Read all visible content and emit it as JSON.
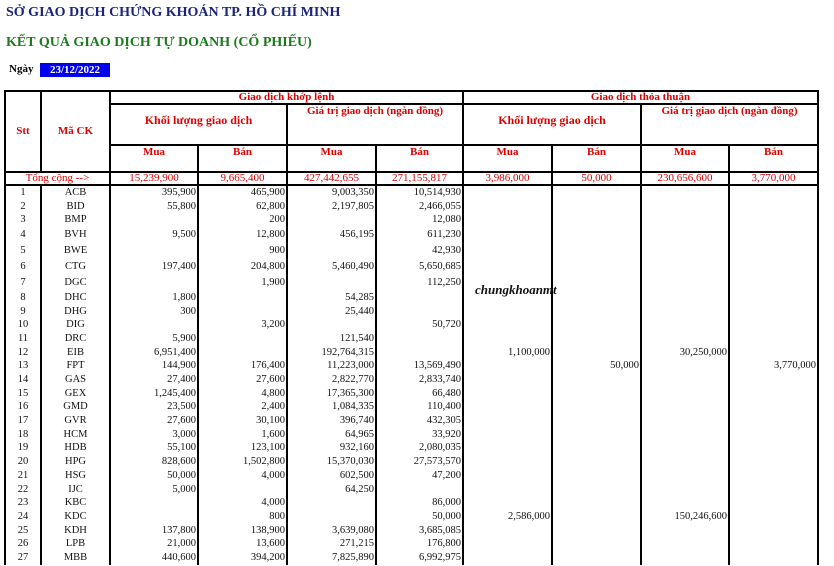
{
  "header": {
    "exchange": "SỞ GIAO DỊCH CHỨNG KHOÁN TP. HỒ CHÍ MINH",
    "report_title": "KẾT QUẢ GIAO DỊCH TỰ DOANH (CỔ PHIẾU)",
    "date_label": "Ngày",
    "date_value": "23/12/2022"
  },
  "watermark": "chungkhoanmt",
  "table": {
    "stt": "Stt",
    "ma_ck": "Mã CK",
    "group_match": "Giao dịch khớp lệnh",
    "group_deal": "Giao dịch thỏa thuận",
    "volume": "Khối lượng giao dịch",
    "value": "Giá trị giao dịch (ngàn đồng)",
    "buy": "Mua",
    "sell": "Bán",
    "total_label": "Tổng cộng  -->",
    "totals": [
      "15,239,900",
      "9,665,400",
      "427,442,655",
      "271,155,817",
      "3,986,000",
      "50,000",
      "230,656,600",
      "3,770,000"
    ],
    "rows": [
      [
        "1",
        "ACB",
        "395,900",
        "465,900",
        "9,003,350",
        "10,514,930",
        "",
        "",
        "",
        ""
      ],
      [
        "2",
        "BID",
        "55,800",
        "62,800",
        "2,197,805",
        "2,466,055",
        "",
        "",
        "",
        ""
      ],
      [
        "3",
        "BMP",
        "",
        "200",
        "",
        "12,080",
        "",
        "",
        "",
        ""
      ],
      [
        "4",
        "BVH",
        "9,500",
        "12,800",
        "456,195",
        "611,230",
        "",
        "",
        "",
        ""
      ],
      [
        "5",
        "BWE",
        "",
        "900",
        "",
        "42,930",
        "",
        "",
        "",
        ""
      ],
      [
        "6",
        "CTG",
        "197,400",
        "204,800",
        "5,460,490",
        "5,650,685",
        "",
        "",
        "",
        ""
      ],
      [
        "7",
        "DGC",
        "",
        "1,900",
        "",
        "112,250",
        "",
        "",
        "",
        ""
      ],
      [
        "8",
        "DHC",
        "1,800",
        "",
        "54,285",
        "",
        "",
        "",
        "",
        ""
      ],
      [
        "9",
        "DHG",
        "300",
        "",
        "25,440",
        "",
        "",
        "",
        "",
        ""
      ],
      [
        "10",
        "DIG",
        "",
        "3,200",
        "",
        "50,720",
        "",
        "",
        "",
        ""
      ],
      [
        "11",
        "DRC",
        "5,900",
        "",
        "121,540",
        "",
        "",
        "",
        "",
        ""
      ],
      [
        "12",
        "EIB",
        "6,951,400",
        "",
        "192,764,315",
        "",
        "1,100,000",
        "",
        "30,250,000",
        ""
      ],
      [
        "13",
        "FPT",
        "144,900",
        "176,400",
        "11,223,000",
        "13,569,490",
        "",
        "50,000",
        "",
        "3,770,000"
      ],
      [
        "14",
        "GAS",
        "27,400",
        "27,600",
        "2,822,770",
        "2,833,740",
        "",
        "",
        "",
        ""
      ],
      [
        "15",
        "GEX",
        "1,245,400",
        "4,800",
        "17,365,300",
        "66,480",
        "",
        "",
        "",
        ""
      ],
      [
        "16",
        "GMD",
        "23,500",
        "2,400",
        "1,084,335",
        "110,400",
        "",
        "",
        "",
        ""
      ],
      [
        "17",
        "GVR",
        "27,600",
        "30,100",
        "396,740",
        "432,305",
        "",
        "",
        "",
        ""
      ],
      [
        "18",
        "HCM",
        "3,000",
        "1,600",
        "64,965",
        "33,920",
        "",
        "",
        "",
        ""
      ],
      [
        "19",
        "HDB",
        "55,100",
        "123,100",
        "932,160",
        "2,080,035",
        "",
        "",
        "",
        ""
      ],
      [
        "20",
        "HPG",
        "828,600",
        "1,502,800",
        "15,370,030",
        "27,573,570",
        "",
        "",
        "",
        ""
      ],
      [
        "21",
        "HSG",
        "50,000",
        "4,000",
        "602,500",
        "47,200",
        "",
        "",
        "",
        ""
      ],
      [
        "22",
        "IJC",
        "5,000",
        "",
        "64,250",
        "",
        "",
        "",
        "",
        ""
      ],
      [
        "23",
        "KBC",
        "",
        "4,000",
        "",
        "86,000",
        "",
        "",
        "",
        ""
      ],
      [
        "24",
        "KDC",
        "",
        "800",
        "",
        "50,000",
        "2,586,000",
        "",
        "150,246,600",
        ""
      ],
      [
        "25",
        "KDH",
        "137,800",
        "138,900",
        "3,639,080",
        "3,685,085",
        "",
        "",
        "",
        ""
      ],
      [
        "26",
        "LPB",
        "21,000",
        "13,600",
        "271,215",
        "176,800",
        "",
        "",
        "",
        ""
      ],
      [
        "27",
        "MBB",
        "440,600",
        "394,200",
        "7,825,890",
        "6,992,975",
        "",
        "",
        "",
        ""
      ]
    ]
  }
}
